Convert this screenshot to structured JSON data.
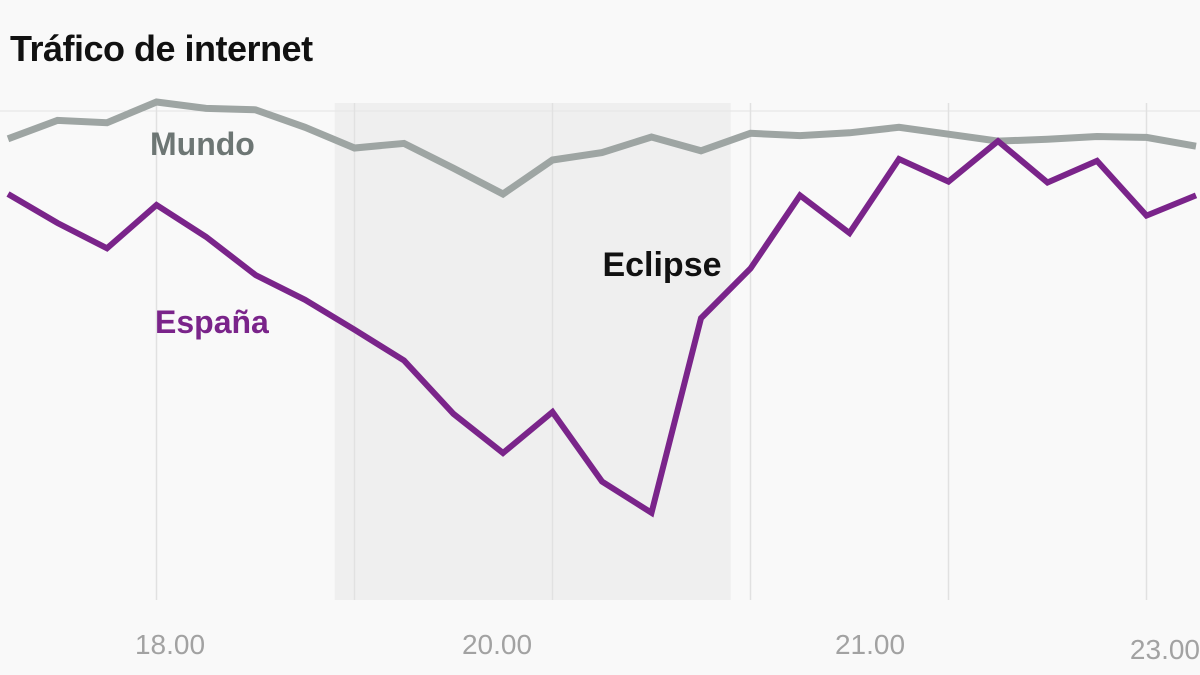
{
  "chart_data": {
    "type": "line",
    "title": "Tráfico de internet",
    "xlabel": "",
    "ylabel": "",
    "grid": true,
    "legend": "inline labels",
    "x_ticks": [
      "18.00",
      "20.00",
      "21.00",
      "23.00"
    ],
    "highlight": {
      "label": "Eclipse",
      "x_range": [
        6.6,
        14.6
      ],
      "color": "#efefef"
    },
    "ylim": [
      0,
      100
    ],
    "series": [
      {
        "name": "Mundo",
        "color": "#9ea5a3",
        "label_color": "#6d7674",
        "x": [
          0,
          1,
          2,
          3,
          4,
          5,
          6,
          7,
          8,
          9,
          10,
          11,
          12,
          13,
          14,
          15,
          16,
          17,
          18,
          19,
          20,
          21,
          22,
          23,
          24
        ],
        "values": [
          92,
          96,
          95.5,
          100,
          98.6,
          98.3,
          94.5,
          90,
          91,
          85.6,
          80,
          87.4,
          89,
          92.4,
          89.4,
          93.2,
          92.7,
          93.3,
          94.5,
          93,
          91.5,
          91.9,
          92.5,
          92.3,
          90.4
        ]
      },
      {
        "name": "España",
        "color": "#7a248a",
        "label_color": "#7a248a",
        "x": [
          0,
          1,
          2,
          3,
          4,
          5,
          6,
          7,
          8,
          9,
          10,
          11,
          12,
          13,
          14,
          15,
          16,
          17,
          18,
          19,
          20,
          21,
          22,
          23,
          24
        ],
        "values": [
          80,
          73.7,
          68.2,
          77.6,
          70.7,
          62.4,
          57,
          50.5,
          43.8,
          32.2,
          23.7,
          32.6,
          17.5,
          10.7,
          53,
          63.8,
          79.7,
          71.5,
          87.6,
          82.7,
          91.5,
          82.5,
          87.2,
          75.3,
          79.7
        ]
      }
    ]
  }
}
